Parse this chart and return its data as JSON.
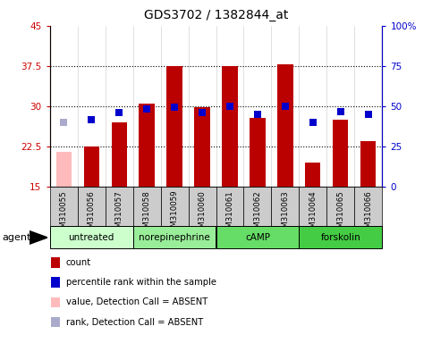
{
  "title": "GDS3702 / 1382844_at",
  "samples": [
    "GSM310055",
    "GSM310056",
    "GSM310057",
    "GSM310058",
    "GSM310059",
    "GSM310060",
    "GSM310061",
    "GSM310062",
    "GSM310063",
    "GSM310064",
    "GSM310065",
    "GSM310066"
  ],
  "bar_values": [
    21.5,
    22.5,
    27.0,
    30.5,
    37.5,
    29.8,
    37.5,
    27.8,
    37.8,
    19.5,
    27.5,
    23.5
  ],
  "bar_absent": [
    true,
    false,
    false,
    false,
    false,
    false,
    false,
    false,
    false,
    false,
    false,
    false
  ],
  "percentile_values": [
    27.0,
    27.5,
    28.8,
    29.5,
    29.8,
    28.8,
    30.0,
    28.5,
    30.0,
    27.0,
    29.0,
    28.5
  ],
  "percentile_absent": [
    true,
    false,
    false,
    false,
    false,
    false,
    false,
    false,
    false,
    false,
    false,
    false
  ],
  "bar_color_normal": "#bb0000",
  "bar_color_absent": "#ffbbbb",
  "percentile_color_normal": "#0000cc",
  "percentile_color_absent": "#aaaacc",
  "ylim_left": [
    15,
    45
  ],
  "ylim_right": [
    0,
    100
  ],
  "yticks_left": [
    15,
    22.5,
    30,
    37.5,
    45
  ],
  "yticks_right": [
    0,
    25,
    50,
    75,
    100
  ],
  "groups": [
    {
      "label": "untreated",
      "start": 0,
      "end": 3,
      "color": "#ccffcc"
    },
    {
      "label": "norepinephrine",
      "start": 3,
      "end": 6,
      "color": "#99ee99"
    },
    {
      "label": "cAMP",
      "start": 6,
      "end": 9,
      "color": "#66dd66"
    },
    {
      "label": "forskolin",
      "start": 9,
      "end": 12,
      "color": "#44cc44"
    }
  ],
  "agent_label": "agent",
  "legend_items": [
    {
      "color": "#bb0000",
      "label": "count"
    },
    {
      "color": "#0000cc",
      "label": "percentile rank within the sample"
    },
    {
      "color": "#ffbbbb",
      "label": "value, Detection Call = ABSENT"
    },
    {
      "color": "#aaaacc",
      "label": "rank, Detection Call = ABSENT"
    }
  ],
  "bar_width": 0.55,
  "percentile_marker_size": 6,
  "sample_box_color": "#cccccc",
  "grid_color": "#000000",
  "grid_style": "dotted",
  "grid_vals": [
    22.5,
    30.0,
    37.5
  ]
}
